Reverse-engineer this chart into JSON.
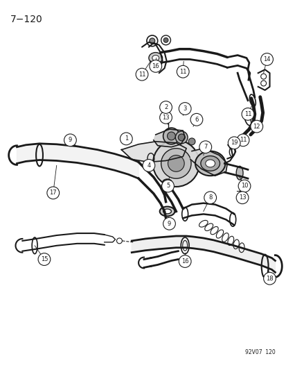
{
  "title": "7−120",
  "watermark": "92V07  120",
  "background_color": "#ffffff",
  "line_color": "#1a1a1a",
  "fig_width": 4.14,
  "fig_height": 5.33,
  "dpi": 100
}
